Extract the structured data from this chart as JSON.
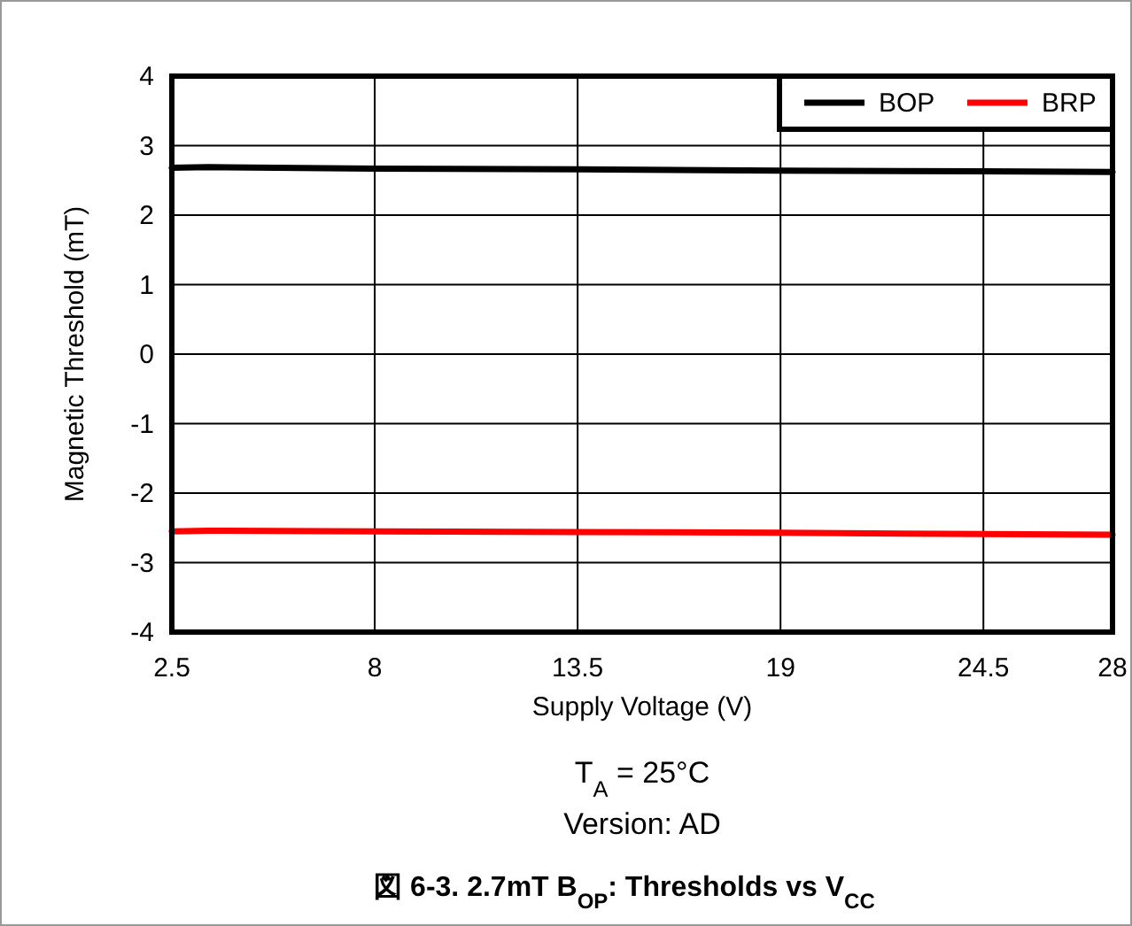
{
  "chart_data": {
    "type": "line",
    "title": "図 6-3. 2.7mT B$_{OP}$: Thresholds vs V$_{CC}$",
    "xlabel": "Supply Voltage (V)",
    "ylabel": "Magnetic Threshold (mT)",
    "annotations": [
      "T$_{A}$ = 25°C",
      "Version: AD"
    ],
    "x": [
      2.5,
      3.5,
      8,
      13.5,
      19,
      24.5,
      28
    ],
    "series": [
      {
        "name": "BOP",
        "color": "#000000",
        "values": [
          2.68,
          2.69,
          2.67,
          2.66,
          2.64,
          2.63,
          2.62
        ]
      },
      {
        "name": "BRP",
        "color": "#ff0000",
        "values": [
          -2.55,
          -2.54,
          -2.55,
          -2.56,
          -2.57,
          -2.59,
          -2.6
        ]
      }
    ],
    "xlim": [
      2.5,
      28
    ],
    "xticks": [
      2.5,
      8,
      13.5,
      19,
      24.5,
      28
    ],
    "ylim": [
      -4,
      4
    ],
    "yticks": [
      -4,
      -3,
      -2,
      -1,
      0,
      1,
      2,
      3,
      4
    ],
    "grid": true,
    "legend": "top right",
    "marker": "none",
    "line_style": "solid"
  }
}
